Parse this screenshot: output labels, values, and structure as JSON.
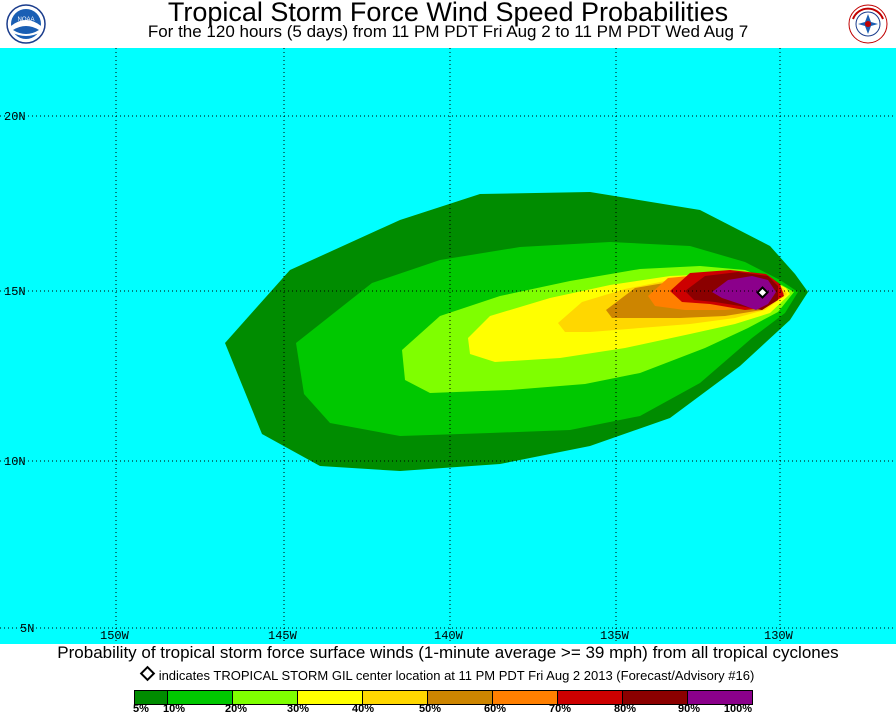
{
  "header": {
    "title": "Tropical Storm Force Wind Speed Probabilities",
    "subtitle": "For the 120 hours (5 days) from 11 PM PDT Fri Aug 2 to 11 PM PDT Wed Aug 7"
  },
  "logos": {
    "left": "noaa-logo",
    "left_text": "NOAA",
    "right": "national-weather-service-logo",
    "right_text": "NATIONAL WEATHER SERVICE"
  },
  "map": {
    "background_color": "#00ffff",
    "lat_labels": [
      "20N",
      "15N",
      "10N",
      "5N"
    ],
    "lon_labels": [
      "150W",
      "145W",
      "140W",
      "135W",
      "130W"
    ],
    "storm": {
      "name": "TROPICAL STORM GIL",
      "lat": 14.9,
      "lon": 130.9
    }
  },
  "footer": {
    "main": "Probability of tropical storm force surface winds (1-minute average >= 39 mph) from all tropical cyclones",
    "note": "indicates TROPICAL STORM GIL center location at 11 PM PDT Fri Aug 2 2013 (Forecast/Advisory #16)"
  },
  "legend": {
    "colors": [
      "#008c00",
      "#00c800",
      "#7fff00",
      "#ffff00",
      "#ffd700",
      "#cd8500",
      "#ff7f00",
      "#cd0000",
      "#8b0000",
      "#8b008b"
    ],
    "labels": [
      "5%",
      "10%",
      "20%",
      "30%",
      "40%",
      "50%",
      "60%",
      "70%",
      "80%",
      "90%",
      "100%"
    ]
  }
}
